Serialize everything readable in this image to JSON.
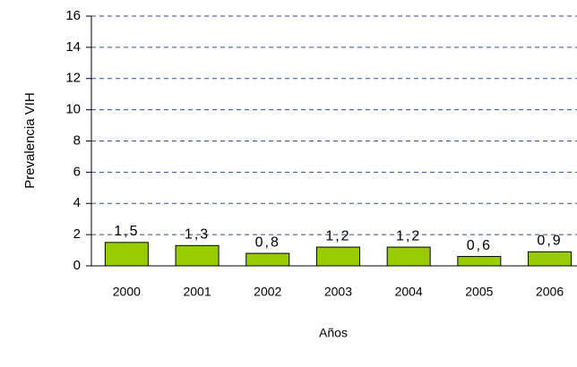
{
  "chart_data": {
    "type": "bar",
    "categories": [
      "2000",
      "2001",
      "2002",
      "2003",
      "2004",
      "2005",
      "2006"
    ],
    "values": [
      1.5,
      1.3,
      0.8,
      1.2,
      1.2,
      0.6,
      0.9
    ],
    "value_labels": [
      "1,5",
      "1,3",
      "0,8",
      "1,2",
      "1,2",
      "0,6",
      "0,9"
    ],
    "color": "#99cc00",
    "xlabel": "Años",
    "ylabel": "Prevalencia VIH",
    "ylim": [
      0,
      16
    ],
    "yticks": [
      0,
      2,
      4,
      6,
      8,
      10,
      12,
      14,
      16
    ],
    "grid": true
  }
}
